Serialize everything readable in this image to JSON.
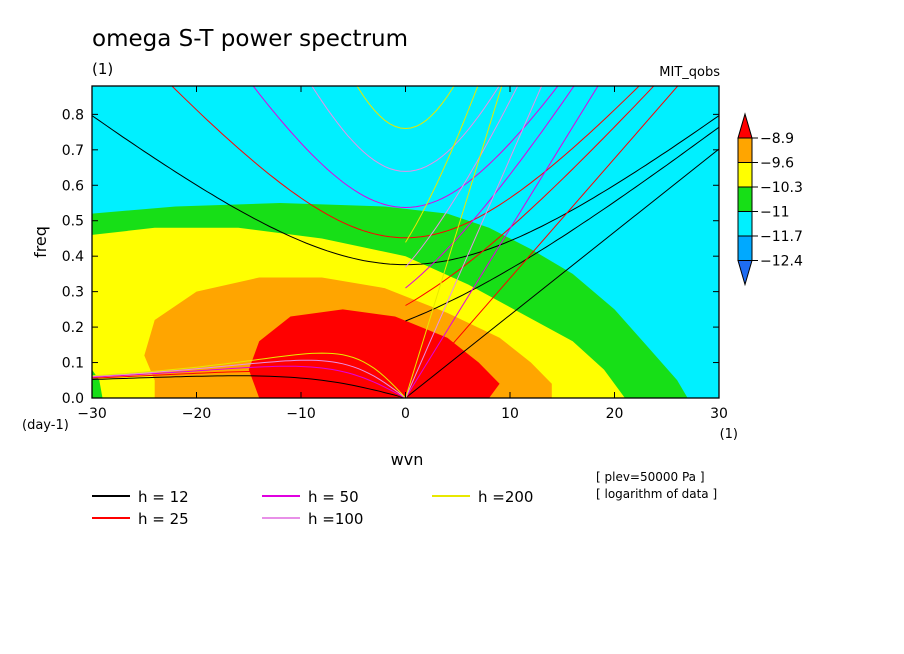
{
  "chart_data": {
    "type": "heatmap",
    "title": "omega S-T power spectrum",
    "subtitle": "(1)",
    "model_label": "MIT_qobs",
    "xlabel": "wvn",
    "ylabel": "freq",
    "x_unit": "(1)",
    "y_unit": "(day-1)",
    "xlim": [
      -30,
      30
    ],
    "ylim": [
      0,
      0.88
    ],
    "x_ticks": [
      -30,
      -20,
      -10,
      0,
      10,
      20,
      30
    ],
    "x_tick_labels": [
      "−30",
      "−20",
      "−10",
      "0",
      "10",
      "20",
      "30"
    ],
    "y_ticks": [
      0,
      0.1,
      0.2,
      0.3,
      0.4,
      0.5,
      0.6,
      0.7,
      0.8
    ],
    "y_tick_labels": [
      "0.0",
      "0.1",
      "0.2",
      "0.3",
      "0.4",
      "0.5",
      "0.6",
      "0.7",
      "0.8"
    ],
    "colorbar": {
      "levels": [
        -8.9,
        -9.6,
        -10.3,
        -11,
        -11.7,
        -12.4
      ],
      "labels": [
        "−8.9",
        "−9.6",
        "−10.3",
        "−11",
        "−11.7",
        "−12.4"
      ],
      "colors": [
        "#1e6cf2",
        "#00a9ff",
        "#00f0ff",
        "#17df17",
        "#ffff00",
        "#ffa500",
        "#ff0000"
      ]
    },
    "bands": [
      {
        "level": "lt_-12.4",
        "color": "#1e6cf2",
        "boundary": [
          [
            30,
            0.82
          ],
          [
            27,
            0.9
          ],
          [
            22,
            0.94
          ],
          [
            30,
            0.94
          ]
        ]
      },
      {
        "level": "-12.4_to_-11.7",
        "color": "#00a9ff",
        "boundary": [
          [
            -27,
            0.9
          ],
          [
            -18,
            0.84
          ],
          [
            -8,
            0.8
          ],
          [
            0,
            0.79
          ],
          [
            8,
            0.78
          ],
          [
            13,
            0.76
          ],
          [
            18,
            0.72
          ],
          [
            23,
            0.66
          ],
          [
            27,
            0.58
          ],
          [
            30,
            0.52
          ]
        ]
      },
      {
        "level": "-11.7_to_-11",
        "color": "#00f0ff",
        "boundary": [
          [
            -30,
            0.71
          ],
          [
            -24,
            0.69
          ],
          [
            -16,
            0.66
          ],
          [
            -8,
            0.63
          ],
          [
            0,
            0.6
          ],
          [
            8,
            0.55
          ],
          [
            13,
            0.49
          ],
          [
            18,
            0.4
          ],
          [
            22,
            0.32
          ],
          [
            26,
            0.22
          ],
          [
            29,
            0.1
          ],
          [
            30,
            0.05
          ]
        ]
      },
      {
        "level": "-11_to_-10.3",
        "color": "#17df17",
        "boundary": [
          [
            -30,
            0.52
          ],
          [
            -22,
            0.54
          ],
          [
            -12,
            0.55
          ],
          [
            -2,
            0.54
          ],
          [
            4,
            0.52
          ],
          [
            8,
            0.48
          ],
          [
            12,
            0.42
          ],
          [
            16,
            0.35
          ],
          [
            20,
            0.25
          ],
          [
            23,
            0.15
          ],
          [
            26,
            0.05
          ],
          [
            27,
            0
          ]
        ]
      },
      {
        "level": "-10.3_to_-9.6",
        "color": "#ffff00",
        "boundary": [
          [
            -29,
            0.0
          ],
          [
            -29.3,
            0.05
          ],
          [
            -30,
            0.08
          ],
          [
            -30,
            0.46
          ],
          [
            -24,
            0.48
          ],
          [
            -16,
            0.48
          ],
          [
            -8,
            0.45
          ],
          [
            0,
            0.4
          ],
          [
            6,
            0.32
          ],
          [
            11,
            0.24
          ],
          [
            16,
            0.16
          ],
          [
            19,
            0.08
          ],
          [
            21,
            0
          ]
        ]
      },
      {
        "level": "-9.6_to_-8.9",
        "color": "#ffa500",
        "boundary": [
          [
            -24,
            0
          ],
          [
            -24,
            0.05
          ],
          [
            -25,
            0.12
          ],
          [
            -24,
            0.22
          ],
          [
            -20,
            0.3
          ],
          [
            -14,
            0.34
          ],
          [
            -8,
            0.34
          ],
          [
            -2,
            0.31
          ],
          [
            4,
            0.24
          ],
          [
            9,
            0.17
          ],
          [
            12,
            0.1
          ],
          [
            14,
            0.04
          ],
          [
            14,
            0
          ]
        ]
      },
      {
        "level": "gt_-8.9",
        "color": "#ff0000",
        "boundary": [
          [
            -14,
            0
          ],
          [
            -15,
            0.08
          ],
          [
            -14,
            0.16
          ],
          [
            -11,
            0.23
          ],
          [
            -6,
            0.25
          ],
          [
            -1,
            0.23
          ],
          [
            4,
            0.17
          ],
          [
            7,
            0.1
          ],
          [
            9,
            0.04
          ],
          [
            8,
            0
          ]
        ]
      }
    ],
    "dispersion_curves": [
      {
        "name": "h = 12",
        "color": "#000000"
      },
      {
        "name": "h = 25",
        "color": "#ff0000"
      },
      {
        "name": "h = 50",
        "color": "#e000e0"
      },
      {
        "name": "h =100",
        "color": "#e890e8"
      },
      {
        "name": "h =200",
        "color": "#e8e800"
      }
    ],
    "annotations": [
      "[ plev=50000 Pa ]",
      "[ logarithm of data ]"
    ]
  }
}
